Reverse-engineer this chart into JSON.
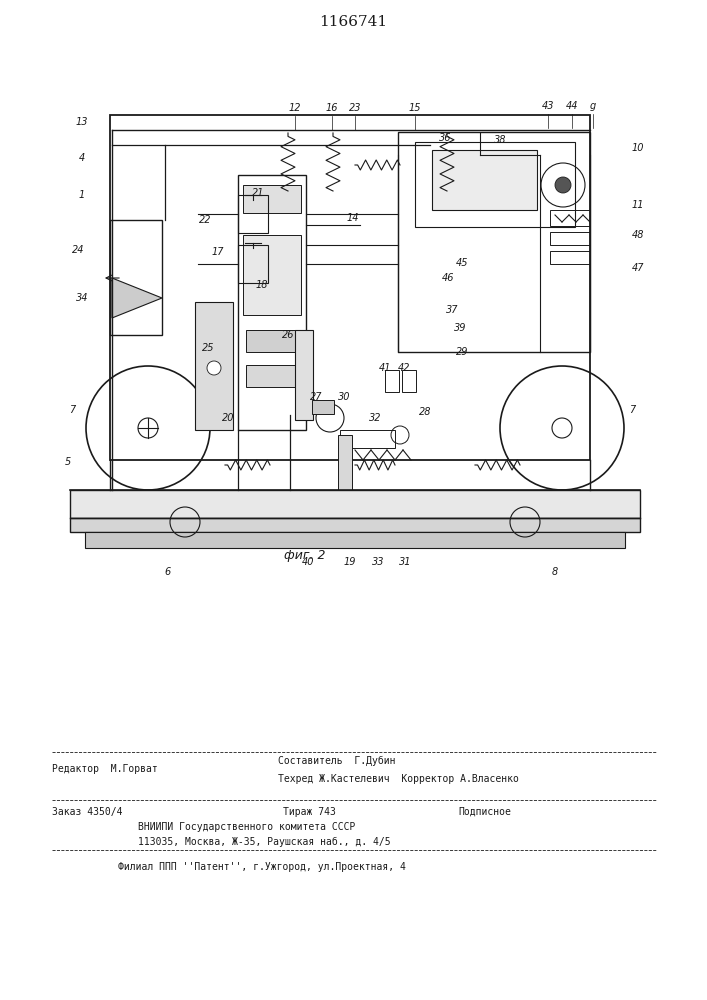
{
  "title": "1166741",
  "fig_label": "фиг. 2",
  "background_color": "#ffffff",
  "line_color": "#1a1a1a",
  "title_fontsize": 11,
  "footer_lines_text": [
    [
      "Редактор  М.Горват",
      "Составитель  Г.Дубин",
      ""
    ],
    [
      "",
      "Техред Ж.Кастелевич  Корректор А.Власенко",
      ""
    ],
    [
      "Заказ 4350/4",
      "Тираж 743",
      "Подписное"
    ],
    [
      "",
      "ВНИИПИ Государственного комитета СССР",
      ""
    ],
    [
      "",
      "113035, Москва, Ж-35, Раушская наб., д. 4/5",
      ""
    ],
    [
      "",
      "Филиал ППП ''Патент'', г.Ужгород, ул.Проектная, 4",
      ""
    ]
  ]
}
